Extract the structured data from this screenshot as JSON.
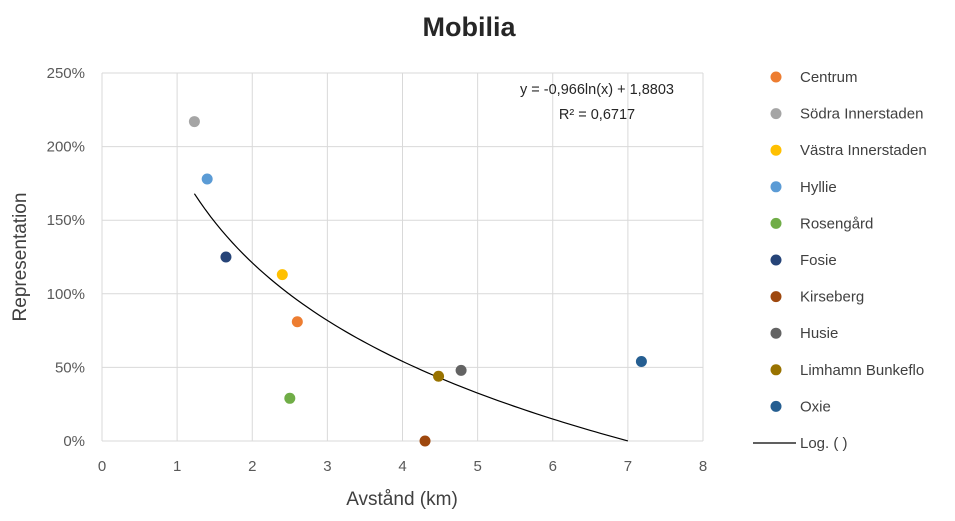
{
  "chart_data": {
    "type": "scatter",
    "title": "Mobilia",
    "xlabel": "Avstånd (km)",
    "ylabel": "Representation",
    "xlim": [
      0,
      8
    ],
    "ylim": [
      0,
      2.5
    ],
    "x_ticks": [
      "0",
      "1",
      "2",
      "3",
      "4",
      "5",
      "6",
      "7",
      "8"
    ],
    "y_ticks": [
      "0%",
      "50%",
      "100%",
      "150%",
      "200%",
      "250%"
    ],
    "grid": true,
    "legend_position": "right",
    "series": [
      {
        "name": "Centrum",
        "color": "#ED7D31",
        "x": 2.6,
        "y": 0.81
      },
      {
        "name": "Södra Innerstaden",
        "color": "#A5A5A5",
        "x": 1.23,
        "y": 2.17
      },
      {
        "name": "Västra Innerstaden",
        "color": "#FFC000",
        "x": 2.4,
        "y": 1.13
      },
      {
        "name": "Hyllie",
        "color": "#5B9BD5",
        "x": 1.4,
        "y": 1.78
      },
      {
        "name": "Rosengård",
        "color": "#70AD47",
        "x": 2.5,
        "y": 0.29
      },
      {
        "name": "Fosie",
        "color": "#264478",
        "x": 1.65,
        "y": 1.25
      },
      {
        "name": "Kirseberg",
        "color": "#9E480E",
        "x": 4.3,
        "y": 0.0
      },
      {
        "name": "Husie",
        "color": "#636363",
        "x": 4.78,
        "y": 0.48
      },
      {
        "name": "Limhamn Bunkeflo",
        "color": "#997300",
        "x": 4.48,
        "y": 0.44
      },
      {
        "name": "Oxie",
        "color": "#255E91",
        "x": 7.18,
        "y": 0.54
      }
    ],
    "trendline": {
      "name": "Log. ( )",
      "type": "logarithmic",
      "a": -0.966,
      "b": 1.8803,
      "x_range": [
        1.23,
        7.0
      ],
      "color": "#000000",
      "equation": "y = -0,966ln(x) + 1,8803",
      "r_squared": "R² = 0,6717"
    }
  }
}
